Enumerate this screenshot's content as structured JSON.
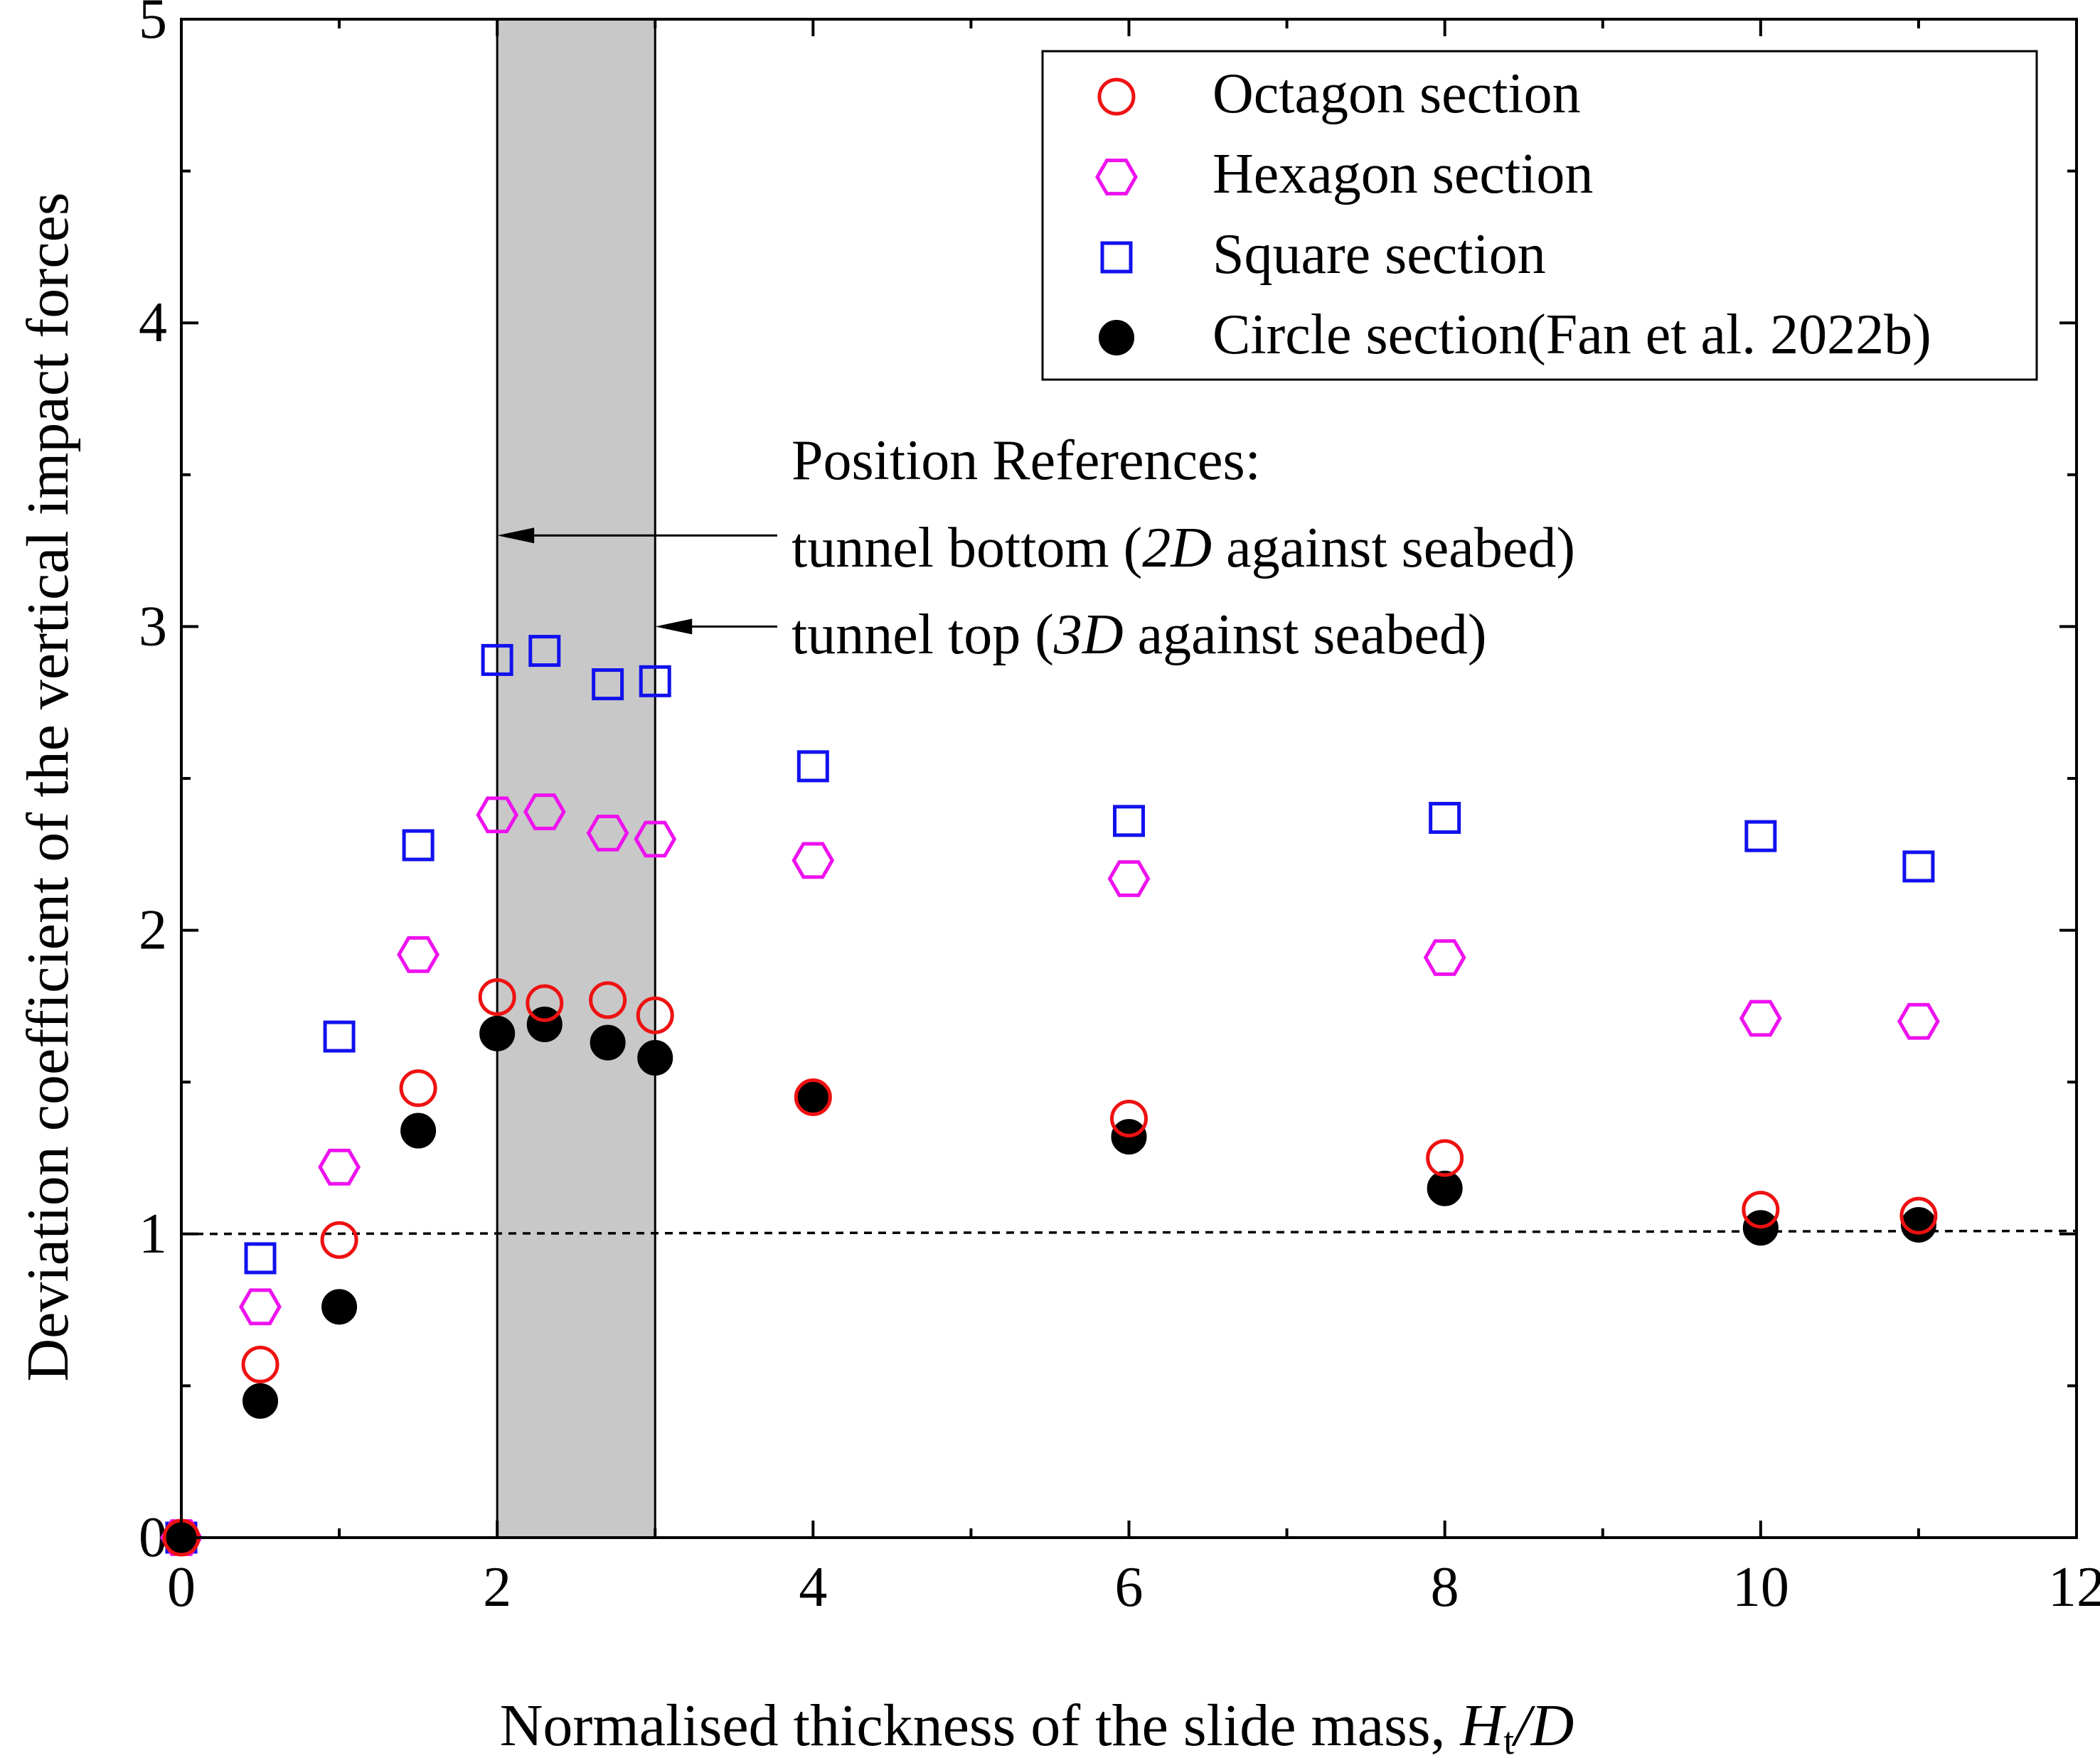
{
  "chart_data": {
    "type": "scatter",
    "title": "",
    "xlabel": "Normalised thickness of the slide mass, ",
    "xlabel_var": "H",
    "xlabel_sub": "t",
    "xlabel_tail": "/D",
    "ylabel": "Deviation coefficient of the vertical impact forces",
    "xlim": [
      0,
      12
    ],
    "ylim": [
      0,
      5
    ],
    "xticks": [
      0,
      2,
      4,
      6,
      8,
      10,
      12
    ],
    "yticks": [
      0,
      1,
      2,
      3,
      4,
      5
    ],
    "xtick_labels": [
      "0",
      "2",
      "4",
      "6",
      "8",
      "10",
      "12"
    ],
    "ytick_labels": [
      "0",
      "1",
      "2",
      "3",
      "4",
      "5"
    ],
    "shaded_band": [
      2,
      3
    ],
    "reference_line_y": [
      1.0,
      1.01
    ],
    "series": [
      {
        "name": "Octagon section",
        "marker": "circle-open",
        "color": "#ee1111",
        "x": [
          0,
          0.5,
          1,
          1.5,
          2,
          2.3,
          2.7,
          3,
          4,
          6,
          8,
          10,
          11
        ],
        "y": [
          0,
          0.57,
          0.98,
          1.48,
          1.78,
          1.76,
          1.77,
          1.72,
          1.45,
          1.38,
          1.25,
          1.08,
          1.06
        ]
      },
      {
        "name": "Hexagon section",
        "marker": "hexagon-open",
        "color": "#ee11ee",
        "x": [
          0,
          0.5,
          1,
          1.5,
          2,
          2.3,
          2.7,
          3,
          4,
          6,
          8,
          10,
          11
        ],
        "y": [
          0,
          0.76,
          1.22,
          1.92,
          2.38,
          2.39,
          2.32,
          2.3,
          2.23,
          2.17,
          1.91,
          1.71,
          1.7
        ]
      },
      {
        "name": "Square section",
        "marker": "square-open",
        "color": "#1111ee",
        "x": [
          0,
          0.5,
          1,
          1.5,
          2,
          2.3,
          2.7,
          3,
          4,
          6,
          8,
          10,
          11
        ],
        "y": [
          0,
          0.92,
          1.65,
          2.28,
          2.89,
          2.92,
          2.81,
          2.82,
          2.54,
          2.36,
          2.37,
          2.31,
          2.21
        ]
      },
      {
        "name": "Circle section(Fan et al. 2022b)",
        "marker": "circle-filled",
        "color": "#000000",
        "x": [
          0,
          0.5,
          1,
          1.5,
          2,
          2.3,
          2.7,
          3,
          4,
          6,
          8,
          10,
          11
        ],
        "y": [
          0,
          0.45,
          0.76,
          1.34,
          1.66,
          1.69,
          1.63,
          1.58,
          1.45,
          1.32,
          1.15,
          1.02,
          1.03
        ]
      }
    ],
    "legend": {
      "position": "top-right",
      "entries": [
        "Octagon section",
        "Hexagon section",
        "Square section",
        "Circle section(Fan et al. 2022b)"
      ]
    },
    "annotations": {
      "heading": "Position References:",
      "bottom": {
        "x": 2,
        "y": 3.3,
        "pre": "tunnel bottom (",
        "num": "2",
        "var": "D",
        "post": " against seabed)"
      },
      "top": {
        "x": 3,
        "y": 3.0,
        "pre": "tunnel top (",
        "num": "3",
        "var": "D",
        "post": " against seabed)"
      }
    }
  }
}
